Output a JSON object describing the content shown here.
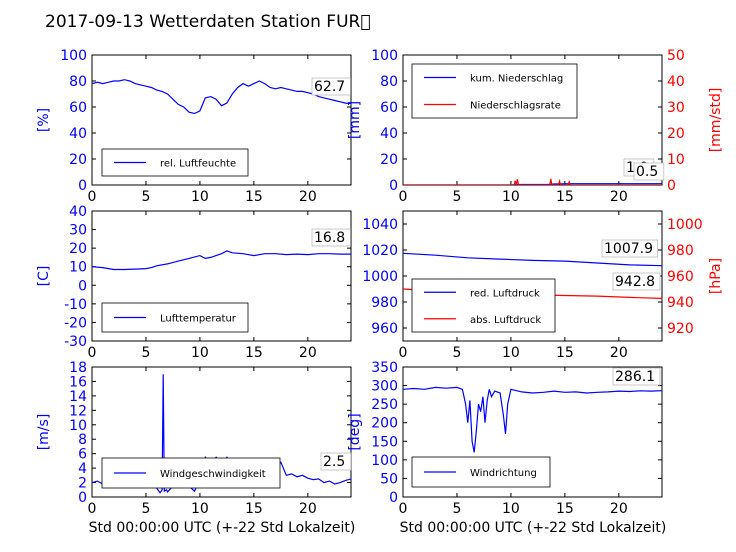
{
  "title": "2017-09-13 Wetterdaten Station FUR\u0000",
  "xlabel": "Std 00:00:00 UTC (+-22 Std Lokalzeit)",
  "colors": {
    "blue": "#0000ff",
    "red": "#ff0000",
    "black": "#000000"
  },
  "chart_data": [
    {
      "id": "humidity",
      "type": "line",
      "ylabel": "[%]",
      "ylim": [
        0,
        100
      ],
      "yticks": [
        0,
        20,
        40,
        60,
        80,
        100
      ],
      "xlim": [
        0,
        24
      ],
      "xticks": [
        0,
        5,
        10,
        15,
        20
      ],
      "legend": [
        "rel. Luftfeuchte"
      ],
      "legend_loc": "lower-left",
      "value_label": "62.7",
      "series": [
        {
          "name": "rel. Luftfeuchte",
          "color": "#0000ff",
          "x": [
            0,
            0.5,
            1,
            1.5,
            2,
            2.5,
            3,
            3.5,
            4,
            4.5,
            5,
            5.5,
            6,
            6.5,
            7,
            7.5,
            8,
            8.5,
            9,
            9.5,
            10,
            10.5,
            11,
            11.5,
            12,
            12.5,
            13,
            13.5,
            14,
            14.5,
            15,
            15.5,
            16,
            16.5,
            17,
            17.5,
            18,
            18.5,
            19,
            19.5,
            20,
            20.5,
            21,
            21.5,
            22,
            22.5,
            23,
            23.5,
            24
          ],
          "y": [
            78,
            79,
            78,
            79,
            80,
            80,
            81,
            80,
            78,
            77,
            76,
            75,
            73,
            72,
            70,
            66,
            62,
            60,
            56,
            55,
            57,
            67,
            68,
            66,
            61,
            63,
            70,
            75,
            78,
            76,
            78,
            80,
            78,
            75,
            74,
            75,
            74,
            73,
            72,
            72,
            71,
            70,
            68,
            67,
            66,
            65,
            64,
            63,
            62.7
          ]
        }
      ]
    },
    {
      "id": "precip",
      "type": "line",
      "ylabel": "[mm]",
      "ylim": [
        0,
        100
      ],
      "yticks": [
        0,
        20,
        40,
        60,
        80,
        100
      ],
      "ylabel2": "[mm/std]",
      "ylim2": [
        0,
        50
      ],
      "yticks2": [
        0,
        10,
        20,
        30,
        40,
        50
      ],
      "xlim": [
        0,
        24
      ],
      "xticks": [
        0,
        5,
        10,
        15,
        20
      ],
      "legend": [
        "kum. Niederschlag",
        "Niederschlagsrate"
      ],
      "legend_loc": "upper-left",
      "value_label": "1.0",
      "value_label2": "0.5",
      "series": [
        {
          "name": "kum. Niederschlag",
          "color": "#0000ff",
          "axis": "left",
          "x": [
            0,
            10,
            10.5,
            13.5,
            14,
            15.5,
            24
          ],
          "y": [
            0,
            0,
            0.4,
            0.5,
            0.8,
            1.0,
            1.0
          ]
        },
        {
          "name": "Niederschlagsrate",
          "color": "#ff0000",
          "axis": "right",
          "x": [
            0,
            10.3,
            10.4,
            10.5,
            10.6,
            10.7,
            13.6,
            13.7,
            13.8,
            14.4,
            14.5,
            14.6,
            15.3,
            15.4,
            15.5,
            24
          ],
          "y": [
            0,
            0,
            1.6,
            0,
            2.2,
            0,
            0,
            2.4,
            0,
            0,
            1.5,
            0,
            0,
            1.2,
            0,
            0
          ]
        }
      ]
    },
    {
      "id": "temperature",
      "type": "line",
      "ylabel": "[C]",
      "ylim": [
        -30,
        40
      ],
      "yticks": [
        -30,
        -20,
        -10,
        0,
        10,
        20,
        30,
        40
      ],
      "xlim": [
        0,
        24
      ],
      "xticks": [
        0,
        5,
        10,
        15,
        20
      ],
      "legend": [
        "Lufttemperatur"
      ],
      "legend_loc": "lower-left",
      "value_label": "16.8",
      "series": [
        {
          "name": "Lufttemperatur",
          "color": "#0000ff",
          "x": [
            0,
            1,
            2,
            3,
            4,
            5,
            5.5,
            6,
            7,
            8,
            9,
            10,
            10.5,
            11,
            12,
            12.5,
            13,
            14,
            15,
            16,
            17,
            18,
            19,
            20,
            21,
            22,
            23,
            24
          ],
          "y": [
            10,
            9.5,
            8.5,
            8.5,
            8.7,
            9,
            9.5,
            10.5,
            11.5,
            13,
            14.5,
            16,
            14.5,
            15,
            17,
            18.5,
            17.5,
            17,
            16,
            17,
            17,
            16.5,
            16.8,
            16.5,
            17,
            17,
            16.8,
            16.8
          ]
        }
      ]
    },
    {
      "id": "pressure",
      "type": "line",
      "ylabel2": "[hPa]",
      "ylim": [
        950,
        1050
      ],
      "yticks": [
        960,
        980,
        1000,
        1020,
        1040
      ],
      "ylim2": [
        910,
        1010
      ],
      "yticks2": [
        920,
        940,
        960,
        980,
        1000
      ],
      "xlim": [
        0,
        24
      ],
      "xticks": [
        0,
        5,
        10,
        15,
        20
      ],
      "legend": [
        "red. Luftdruck",
        "abs. Luftdruck"
      ],
      "legend_loc": "lower-left",
      "value_label": "1007.9",
      "value_label2": "942.8",
      "series": [
        {
          "name": "red. Luftdruck",
          "color": "#0000ff",
          "axis": "left",
          "x": [
            0,
            3,
            6,
            9,
            12,
            15,
            18,
            21,
            24
          ],
          "y": [
            1017.5,
            1016,
            1014,
            1013,
            1012,
            1011.5,
            1010,
            1008.5,
            1007.9
          ]
        },
        {
          "name": "abs. Luftdruck",
          "color": "#ff0000",
          "axis": "right",
          "x": [
            0,
            3,
            6,
            9,
            12,
            15,
            18,
            21,
            24
          ],
          "y": [
            950,
            948.5,
            947,
            946,
            945.5,
            945,
            944.5,
            943.5,
            942.8
          ]
        }
      ]
    },
    {
      "id": "wind-speed",
      "type": "line",
      "ylabel": "[m/s]",
      "ylim": [
        0,
        18
      ],
      "yticks": [
        0,
        2,
        4,
        6,
        8,
        10,
        12,
        14,
        16,
        18
      ],
      "xlim": [
        0,
        24
      ],
      "xticks": [
        0,
        5,
        10,
        15,
        20
      ],
      "legend": [
        "Windgeschwindigkeit"
      ],
      "legend_loc": "lower-left",
      "value_label": "2.5",
      "series": [
        {
          "name": "Windgeschwindigkeit",
          "color": "#0000ff",
          "x": [
            0,
            0.5,
            1,
            1.5,
            2,
            2.5,
            3,
            3.5,
            4,
            4.5,
            5,
            5.5,
            6,
            6.3,
            6.5,
            6.6,
            6.7,
            6.9,
            7,
            7.5,
            8,
            8.5,
            9,
            9.5,
            10,
            10.5,
            11,
            11.5,
            12,
            12.5,
            13,
            13.5,
            14,
            14.5,
            15,
            15.5,
            16,
            16.5,
            17,
            17.5,
            18,
            18.5,
            19,
            19.5,
            20,
            20.5,
            21,
            21.5,
            22,
            22.5,
            23,
            23.5,
            24
          ],
          "y": [
            2,
            2.2,
            1.8,
            1.5,
            1.6,
            1.4,
            1.5,
            1.7,
            1.6,
            1.8,
            1.7,
            1.9,
            1.2,
            0.6,
            1.0,
            17,
            0.8,
            1.0,
            0.7,
            1.5,
            1.8,
            1.6,
            1.5,
            0.8,
            2.5,
            5.5,
            4.5,
            5.5,
            4.5,
            5.5,
            4.0,
            4.8,
            4.2,
            5.0,
            3.8,
            4.5,
            3.5,
            4.5,
            4.0,
            4.8,
            3.0,
            3.2,
            2.8,
            3.0,
            2.6,
            2.4,
            2.5,
            2.0,
            2.2,
            1.8,
            2.0,
            2.3,
            2.5
          ]
        }
      ]
    },
    {
      "id": "wind-direction",
      "type": "line",
      "ylabel": "[deg]",
      "ylim": [
        0,
        350
      ],
      "yticks": [
        0,
        50,
        100,
        150,
        200,
        250,
        300,
        350
      ],
      "xlim": [
        0,
        24
      ],
      "xticks": [
        0,
        5,
        10,
        15,
        20
      ],
      "legend": [
        "Windrichtung"
      ],
      "legend_loc": "lower-left",
      "value_label": "286.1",
      "series": [
        {
          "name": "Windrichtung",
          "color": "#0000ff",
          "x": [
            0,
            1,
            2,
            3,
            4,
            5,
            5.5,
            5.8,
            6.0,
            6.2,
            6.4,
            6.6,
            6.8,
            7.0,
            7.2,
            7.4,
            7.6,
            7.8,
            8.0,
            8.2,
            8.5,
            9.0,
            9.3,
            9.5,
            9.7,
            10,
            11,
            12,
            13,
            14,
            15,
            16,
            17,
            18,
            19,
            20,
            21,
            22,
            23,
            24
          ],
          "y": [
            290,
            292,
            290,
            295,
            293,
            295,
            290,
            250,
            200,
            260,
            150,
            120,
            180,
            250,
            230,
            270,
            200,
            260,
            290,
            270,
            285,
            280,
            220,
            170,
            250,
            290,
            283,
            280,
            282,
            285,
            282,
            283,
            280,
            282,
            283,
            285,
            284,
            286,
            285,
            286.1
          ]
        }
      ]
    }
  ]
}
